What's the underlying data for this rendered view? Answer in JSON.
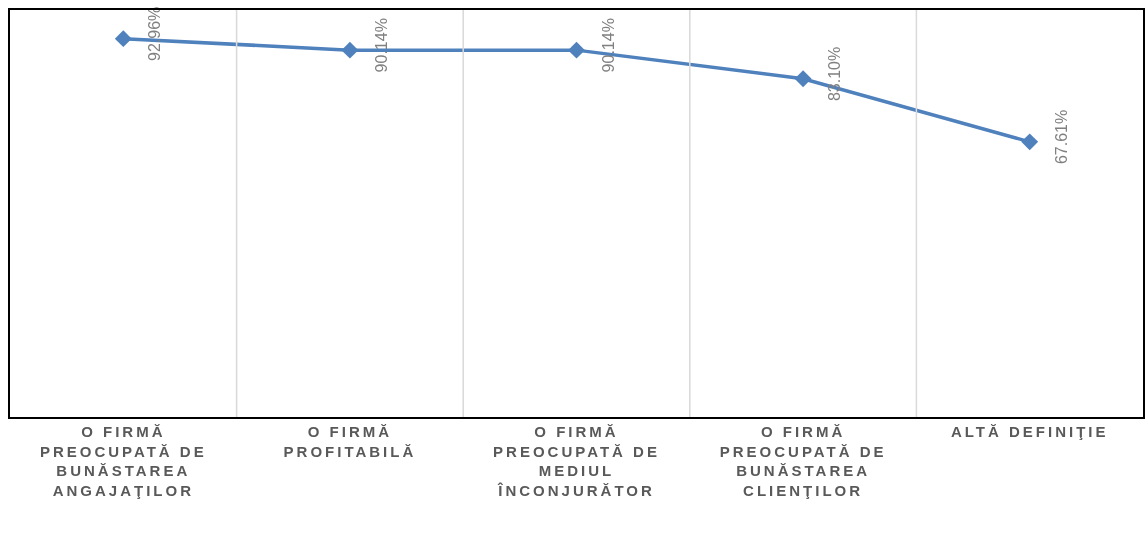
{
  "chart_data": {
    "type": "line",
    "categories": [
      "O FIRMĂ PREOCUPATĂ DE BUNĂSTAREA ANGAJAŢILOR",
      "O FIRMĂ PROFITABILĂ",
      "O FIRMĂ PREOCUPATĂ DE MEDIUL ÎNCONJURĂTOR",
      "O FIRMĂ PREOCUPATĂ DE BUNĂSTAREA CLIENŢILOR",
      "ALTĂ DEFINIŢIE"
    ],
    "series": [
      {
        "color": "#4f81bd",
        "values": [
          92.96,
          90.14,
          90.14,
          83.1,
          67.61
        ],
        "value_labels": [
          "92.96%",
          "90.14%",
          "90.14%",
          "83.10%",
          "67.61%"
        ]
      }
    ],
    "ylim": [
      0,
      100
    ],
    "tick_labels": "x",
    "grid": "x",
    "marker": "diamond",
    "line_style": "solid"
  }
}
